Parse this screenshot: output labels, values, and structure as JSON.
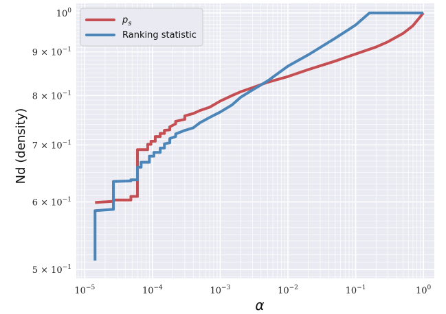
{
  "chart_data": {
    "type": "line",
    "xlabel": "α",
    "ylabel": "Nd (density)",
    "xscale": "log",
    "yscale": "log",
    "xlim": [
      7.5e-06,
      1.45
    ],
    "ylim": [
      0.488,
      1.026
    ],
    "x_ticks": [
      1e-05,
      0.0001,
      0.001,
      0.01,
      0.1,
      1
    ],
    "x_tick_labels": [
      {
        "base": "10",
        "exp": "−5"
      },
      {
        "base": "10",
        "exp": "−4"
      },
      {
        "base": "10",
        "exp": "−3"
      },
      {
        "base": "10",
        "exp": "−2"
      },
      {
        "base": "10",
        "exp": "−1"
      },
      {
        "base": "10",
        "exp": "0"
      }
    ],
    "y_ticks": [
      0.5,
      0.6,
      0.7,
      0.8,
      0.9,
      1.0
    ],
    "y_tick_labels": [
      {
        "mant": "5 × 10",
        "exp": "−1"
      },
      {
        "mant": "6 × 10",
        "exp": "−1"
      },
      {
        "mant": "7 × 10",
        "exp": "−1"
      },
      {
        "mant": "8 × 10",
        "exp": "−1"
      },
      {
        "mant": "9 × 10",
        "exp": "−1"
      },
      {
        "mant": "10",
        "exp": "0"
      }
    ],
    "grid": true,
    "legend_position": "top-left",
    "background_color": "#EAEAF2",
    "series": [
      {
        "name": "p",
        "name_sub": "s",
        "color": "#C44E52",
        "points": [
          [
            1.42e-05,
            0.599
          ],
          [
            2.65e-05,
            0.601
          ],
          [
            2.65e-05,
            0.603
          ],
          [
            4.8e-05,
            0.603
          ],
          [
            4.8e-05,
            0.609
          ],
          [
            6e-05,
            0.609
          ],
          [
            6e-05,
            0.691
          ],
          [
            8.5e-05,
            0.691
          ],
          [
            8.5e-05,
            0.701
          ],
          [
            9.5e-05,
            0.701
          ],
          [
            9.5e-05,
            0.707
          ],
          [
            0.00011,
            0.707
          ],
          [
            0.00011,
            0.716
          ],
          [
            0.00013,
            0.716
          ],
          [
            0.00013,
            0.722
          ],
          [
            0.00015,
            0.722
          ],
          [
            0.00015,
            0.728
          ],
          [
            0.00018,
            0.729
          ],
          [
            0.00018,
            0.735
          ],
          [
            0.00022,
            0.741
          ],
          [
            0.00022,
            0.746
          ],
          [
            0.0003,
            0.75
          ],
          [
            0.0003,
            0.757
          ],
          [
            0.0004,
            0.762
          ],
          [
            0.0005,
            0.768
          ],
          [
            0.0007,
            0.775
          ],
          [
            0.001,
            0.788
          ],
          [
            0.0015,
            0.8
          ],
          [
            0.002,
            0.808
          ],
          [
            0.003,
            0.817
          ],
          [
            0.005,
            0.829
          ],
          [
            0.01,
            0.842
          ],
          [
            0.02,
            0.858
          ],
          [
            0.05,
            0.878
          ],
          [
            0.1,
            0.895
          ],
          [
            0.2,
            0.912
          ],
          [
            0.3,
            0.925
          ],
          [
            0.5,
            0.946
          ],
          [
            0.7,
            0.966
          ],
          [
            1.0,
            1.0
          ]
        ]
      },
      {
        "name": "Ranking statistic",
        "color": "#4C86B8",
        "points": [
          [
            1.42e-05,
            0.512
          ],
          [
            1.42e-05,
            0.586
          ],
          [
            2.65e-05,
            0.588
          ],
          [
            2.65e-05,
            0.634
          ],
          [
            4.8e-05,
            0.635
          ],
          [
            4.8e-05,
            0.637
          ],
          [
            6e-05,
            0.637
          ],
          [
            6e-05,
            0.659
          ],
          [
            6.8e-05,
            0.659
          ],
          [
            6.8e-05,
            0.668
          ],
          [
            9e-05,
            0.668
          ],
          [
            9e-05,
            0.679
          ],
          [
            0.000105,
            0.679
          ],
          [
            0.000105,
            0.686
          ],
          [
            0.00013,
            0.686
          ],
          [
            0.00013,
            0.694
          ],
          [
            0.00015,
            0.694
          ],
          [
            0.00015,
            0.702
          ],
          [
            0.00018,
            0.704
          ],
          [
            0.00018,
            0.712
          ],
          [
            0.00022,
            0.716
          ],
          [
            0.00022,
            0.721
          ],
          [
            0.0003,
            0.728
          ],
          [
            0.0004,
            0.733
          ],
          [
            0.0005,
            0.743
          ],
          [
            0.0007,
            0.754
          ],
          [
            0.001,
            0.765
          ],
          [
            0.0015,
            0.78
          ],
          [
            0.002,
            0.796
          ],
          [
            0.003,
            0.812
          ],
          [
            0.005,
            0.832
          ],
          [
            0.01,
            0.866
          ],
          [
            0.02,
            0.893
          ],
          [
            0.05,
            0.934
          ],
          [
            0.1,
            0.968
          ],
          [
            0.16,
            1.0
          ],
          [
            1.0,
            1.0
          ]
        ]
      }
    ]
  }
}
